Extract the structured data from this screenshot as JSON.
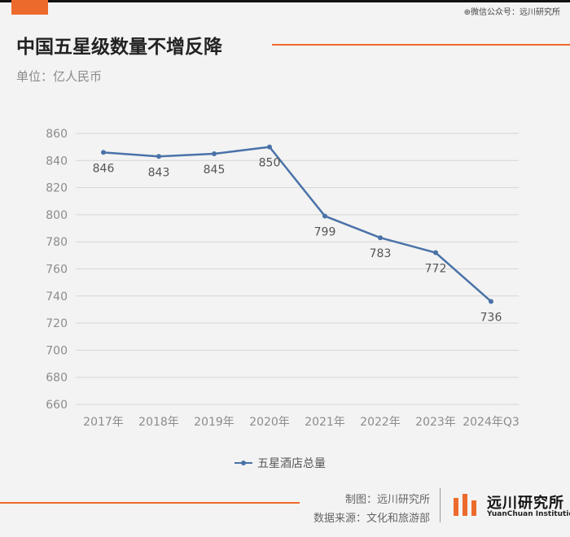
{
  "header": {
    "wechat": "⊕微信公众号：远川研究所",
    "title": "中国五星级数量不增反降",
    "unit": "单位：亿人民币"
  },
  "chart_data": {
    "type": "line",
    "categories": [
      "2017年",
      "2018年",
      "2019年",
      "2020年",
      "2021年",
      "2022年",
      "2023年",
      "2024年Q3"
    ],
    "series": [
      {
        "name": "五星酒店总量",
        "values": [
          846,
          843,
          845,
          850,
          799,
          783,
          772,
          736
        ]
      }
    ],
    "yticks": [
      660,
      680,
      700,
      720,
      740,
      760,
      780,
      800,
      820,
      840,
      860
    ],
    "ylim": [
      660,
      860
    ],
    "grid": true,
    "legend_position": "bottom",
    "line_color": "#4a72a8"
  },
  "footer": {
    "credit_chart": "制图：远川研究所",
    "credit_source": "数据来源：文化和旅游部",
    "brand_name": "远川研究所",
    "brand_en": "YuanChuan Institution"
  },
  "colors": {
    "accent": "#ec6a2c",
    "line": "#4a72a8"
  }
}
